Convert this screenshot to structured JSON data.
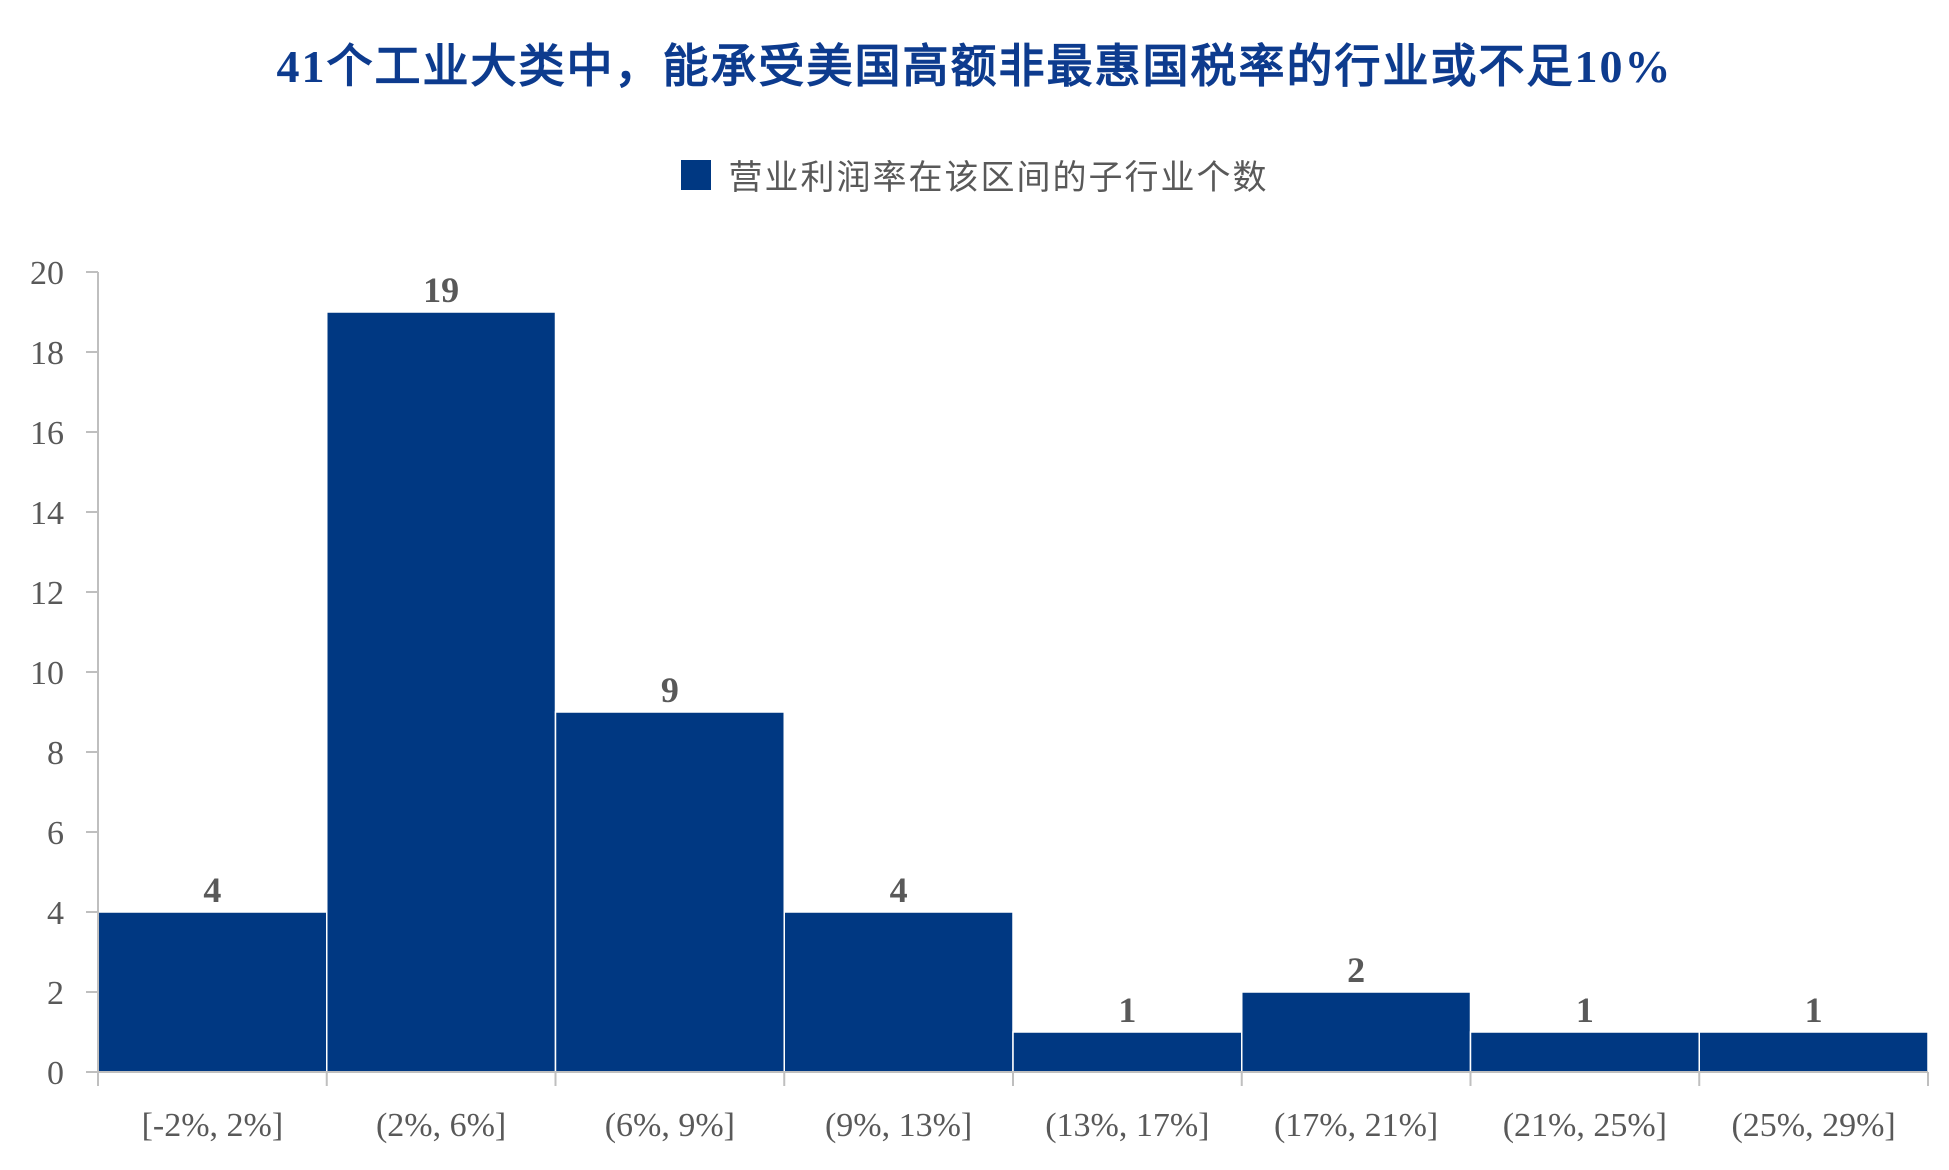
{
  "colors": {
    "title": "#0d3b8e",
    "bar": "#003882",
    "bar_edge": "#ffffff",
    "axis": "#bfbfbf",
    "tick_text": "#595959",
    "label_text": "#595959"
  },
  "chart_data": {
    "type": "bar",
    "title": "41个工业大类中，能承受美国高额非最惠国税率的行业或不足10%",
    "xlabel": "",
    "ylabel": "",
    "legend": {
      "position": "top-center",
      "entries": [
        "营业利润率在该区间的子行业个数"
      ]
    },
    "categories": [
      "[-2%, 2%]",
      "(2%, 6%]",
      "(6%, 9%]",
      "(9%, 13%]",
      "(13%, 17%]",
      "(17%, 21%]",
      "(21%, 25%]",
      "(25%, 29%]"
    ],
    "series": [
      {
        "name": "营业利润率在该区间的子行业个数",
        "values": [
          4,
          19,
          9,
          4,
          1,
          2,
          1,
          1
        ]
      }
    ],
    "ylim": [
      0,
      20
    ],
    "yticks": [
      0,
      2,
      4,
      6,
      8,
      10,
      12,
      14,
      16,
      18,
      20
    ],
    "grid": false,
    "data_labels": true
  }
}
